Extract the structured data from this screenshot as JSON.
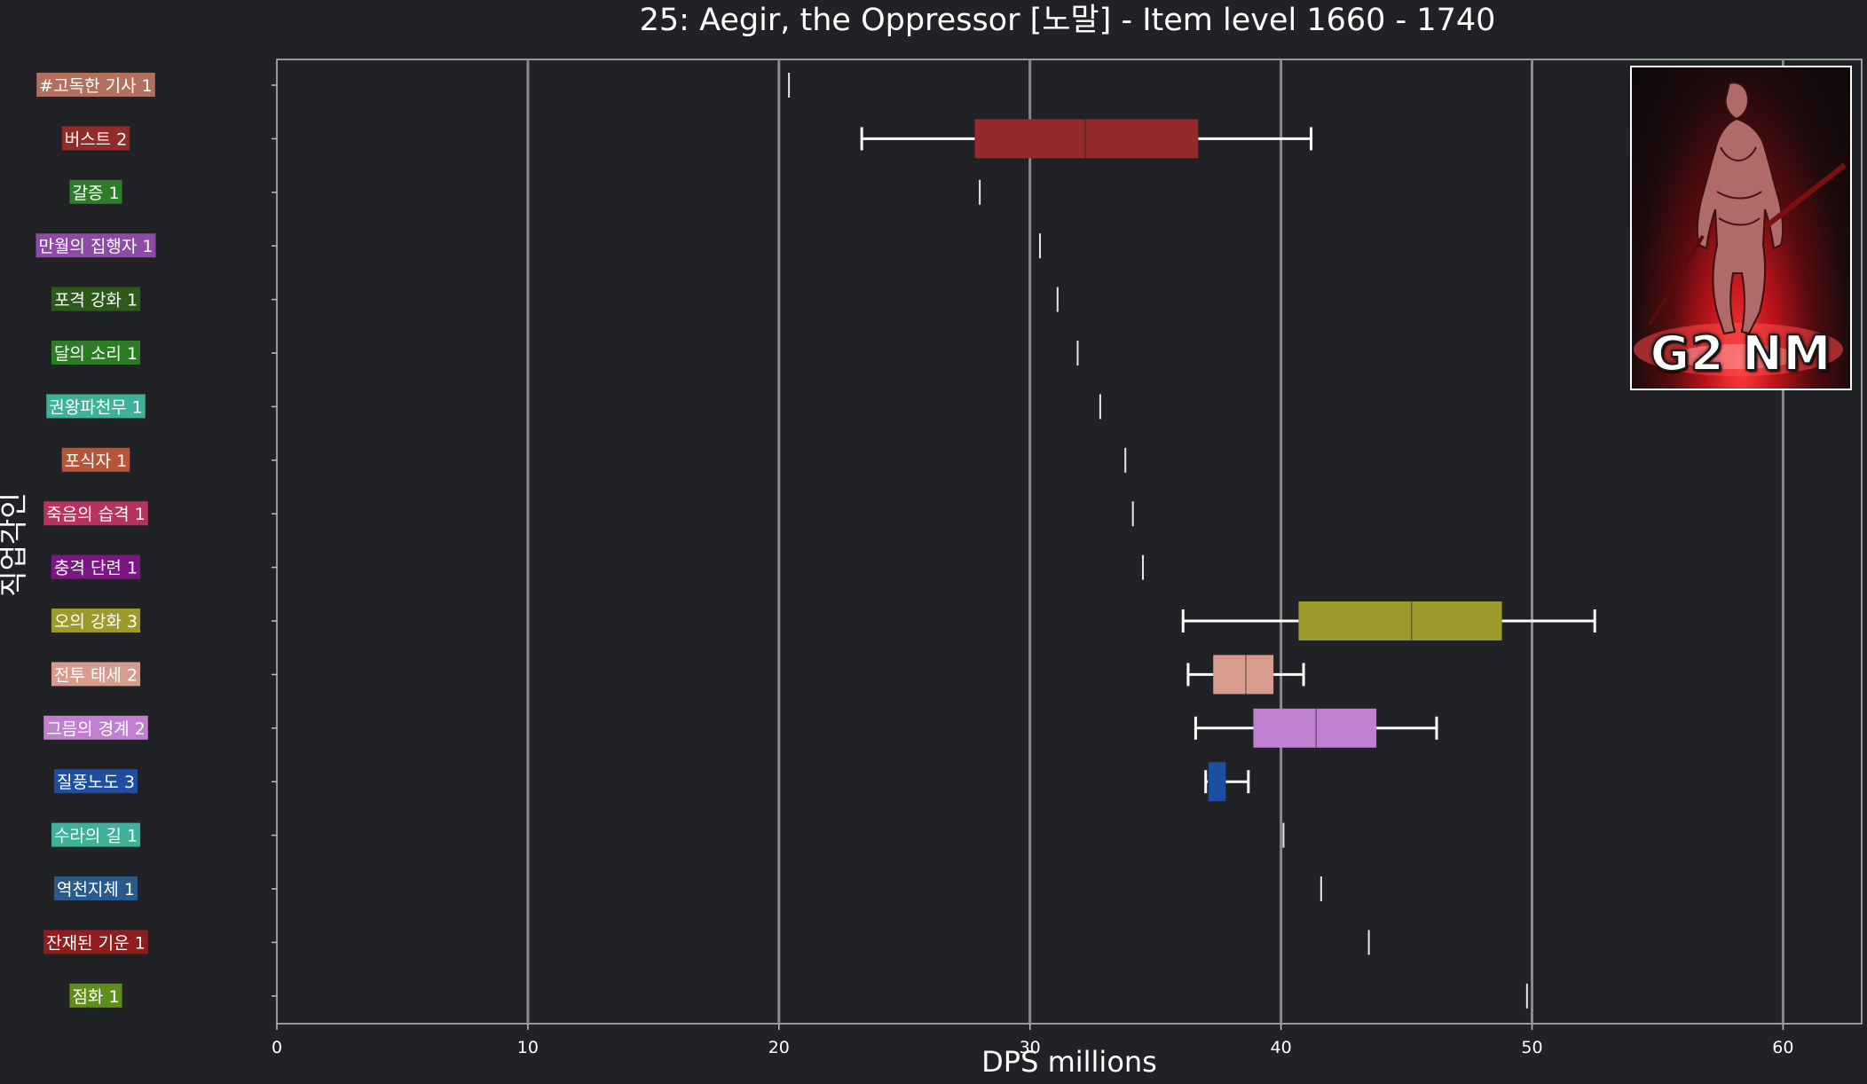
{
  "chart_data": {
    "type": "box",
    "orientation": "horizontal",
    "title": "25: Aegir, the Oppressor [노말] - Item level 1660 - 1740",
    "xlabel": "DPS millions",
    "ylabel": "직업각인",
    "xlim": [
      0,
      63
    ],
    "xticks": [
      0,
      10,
      20,
      30,
      40,
      50,
      60
    ],
    "grid": "vertical",
    "categories": [
      {
        "label": "#고독한 기사 1",
        "color": "#b2705e",
        "min": 20.4,
        "q1": 20.4,
        "median": 20.4,
        "q3": 20.4,
        "max": 20.4
      },
      {
        "label": "버스트 2",
        "color": "#952a2a",
        "min": 23.3,
        "q1": 27.8,
        "median": 32.2,
        "q3": 36.7,
        "max": 41.2
      },
      {
        "label": "갈증 1",
        "color": "#2f7d2a",
        "min": 28.0,
        "q1": 28.0,
        "median": 28.0,
        "q3": 28.0,
        "max": 28.0
      },
      {
        "label": "만월의 집행자 1",
        "color": "#8e4aa7",
        "min": 30.4,
        "q1": 30.4,
        "median": 30.4,
        "q3": 30.4,
        "max": 30.4
      },
      {
        "label": "포격 강화 1",
        "color": "#2d5a1b",
        "min": 31.1,
        "q1": 31.1,
        "median": 31.1,
        "q3": 31.1,
        "max": 31.1
      },
      {
        "label": "달의 소리 1",
        "color": "#2c7c26",
        "min": 31.9,
        "q1": 31.9,
        "median": 31.9,
        "q3": 31.9,
        "max": 31.9
      },
      {
        "label": "권왕파천무 1",
        "color": "#3fb09a",
        "min": 32.8,
        "q1": 32.8,
        "median": 32.8,
        "q3": 32.8,
        "max": 32.8
      },
      {
        "label": "포식자 1",
        "color": "#b5553a",
        "min": 33.8,
        "q1": 33.8,
        "median": 33.8,
        "q3": 33.8,
        "max": 33.8
      },
      {
        "label": "죽음의 습격 1",
        "color": "#b8325f",
        "min": 34.1,
        "q1": 34.1,
        "median": 34.1,
        "q3": 34.1,
        "max": 34.1
      },
      {
        "label": "충격 단련 1",
        "color": "#7c1683",
        "min": 34.5,
        "q1": 34.5,
        "median": 34.5,
        "q3": 34.5,
        "max": 34.5
      },
      {
        "label": "오의 강화 3",
        "color": "#9c9a2a",
        "min": 36.1,
        "q1": 40.7,
        "median": 45.2,
        "q3": 48.8,
        "max": 52.5
      },
      {
        "label": "전투 태세 2",
        "color": "#d79c8e",
        "min": 36.3,
        "q1": 37.3,
        "median": 38.6,
        "q3": 39.7,
        "max": 40.9
      },
      {
        "label": "그믐의 경계 2",
        "color": "#c07fcf",
        "min": 36.6,
        "q1": 38.9,
        "median": 41.4,
        "q3": 43.8,
        "max": 46.2
      },
      {
        "label": "질풍노도 3",
        "color": "#1e4ea1",
        "min": 37.0,
        "q1": 37.1,
        "median": 37.1,
        "q3": 37.8,
        "max": 38.7
      },
      {
        "label": "수라의 길 1",
        "color": "#3fb09a",
        "min": 40.1,
        "q1": 40.1,
        "median": 40.1,
        "q3": 40.1,
        "max": 40.1
      },
      {
        "label": "역천지체 1",
        "color": "#2a5a8a",
        "min": 41.6,
        "q1": 41.6,
        "median": 41.6,
        "q3": 41.6,
        "max": 41.6
      },
      {
        "label": "잔재된 기운 1",
        "color": "#8f1d1d",
        "min": 43.5,
        "q1": 43.5,
        "median": 43.5,
        "q3": 43.5,
        "max": 43.5
      },
      {
        "label": "점화 1",
        "color": "#5e8f1c",
        "min": 49.8,
        "q1": 49.8,
        "median": 49.8,
        "q3": 49.8,
        "max": 49.8
      }
    ]
  },
  "thumbnail": {
    "caption": "G2 NM",
    "icon": "aegir-boss-portrait"
  },
  "colors": {
    "background": "#202226",
    "gridline": "#8a8a8a",
    "whisker": "#ffffff"
  }
}
